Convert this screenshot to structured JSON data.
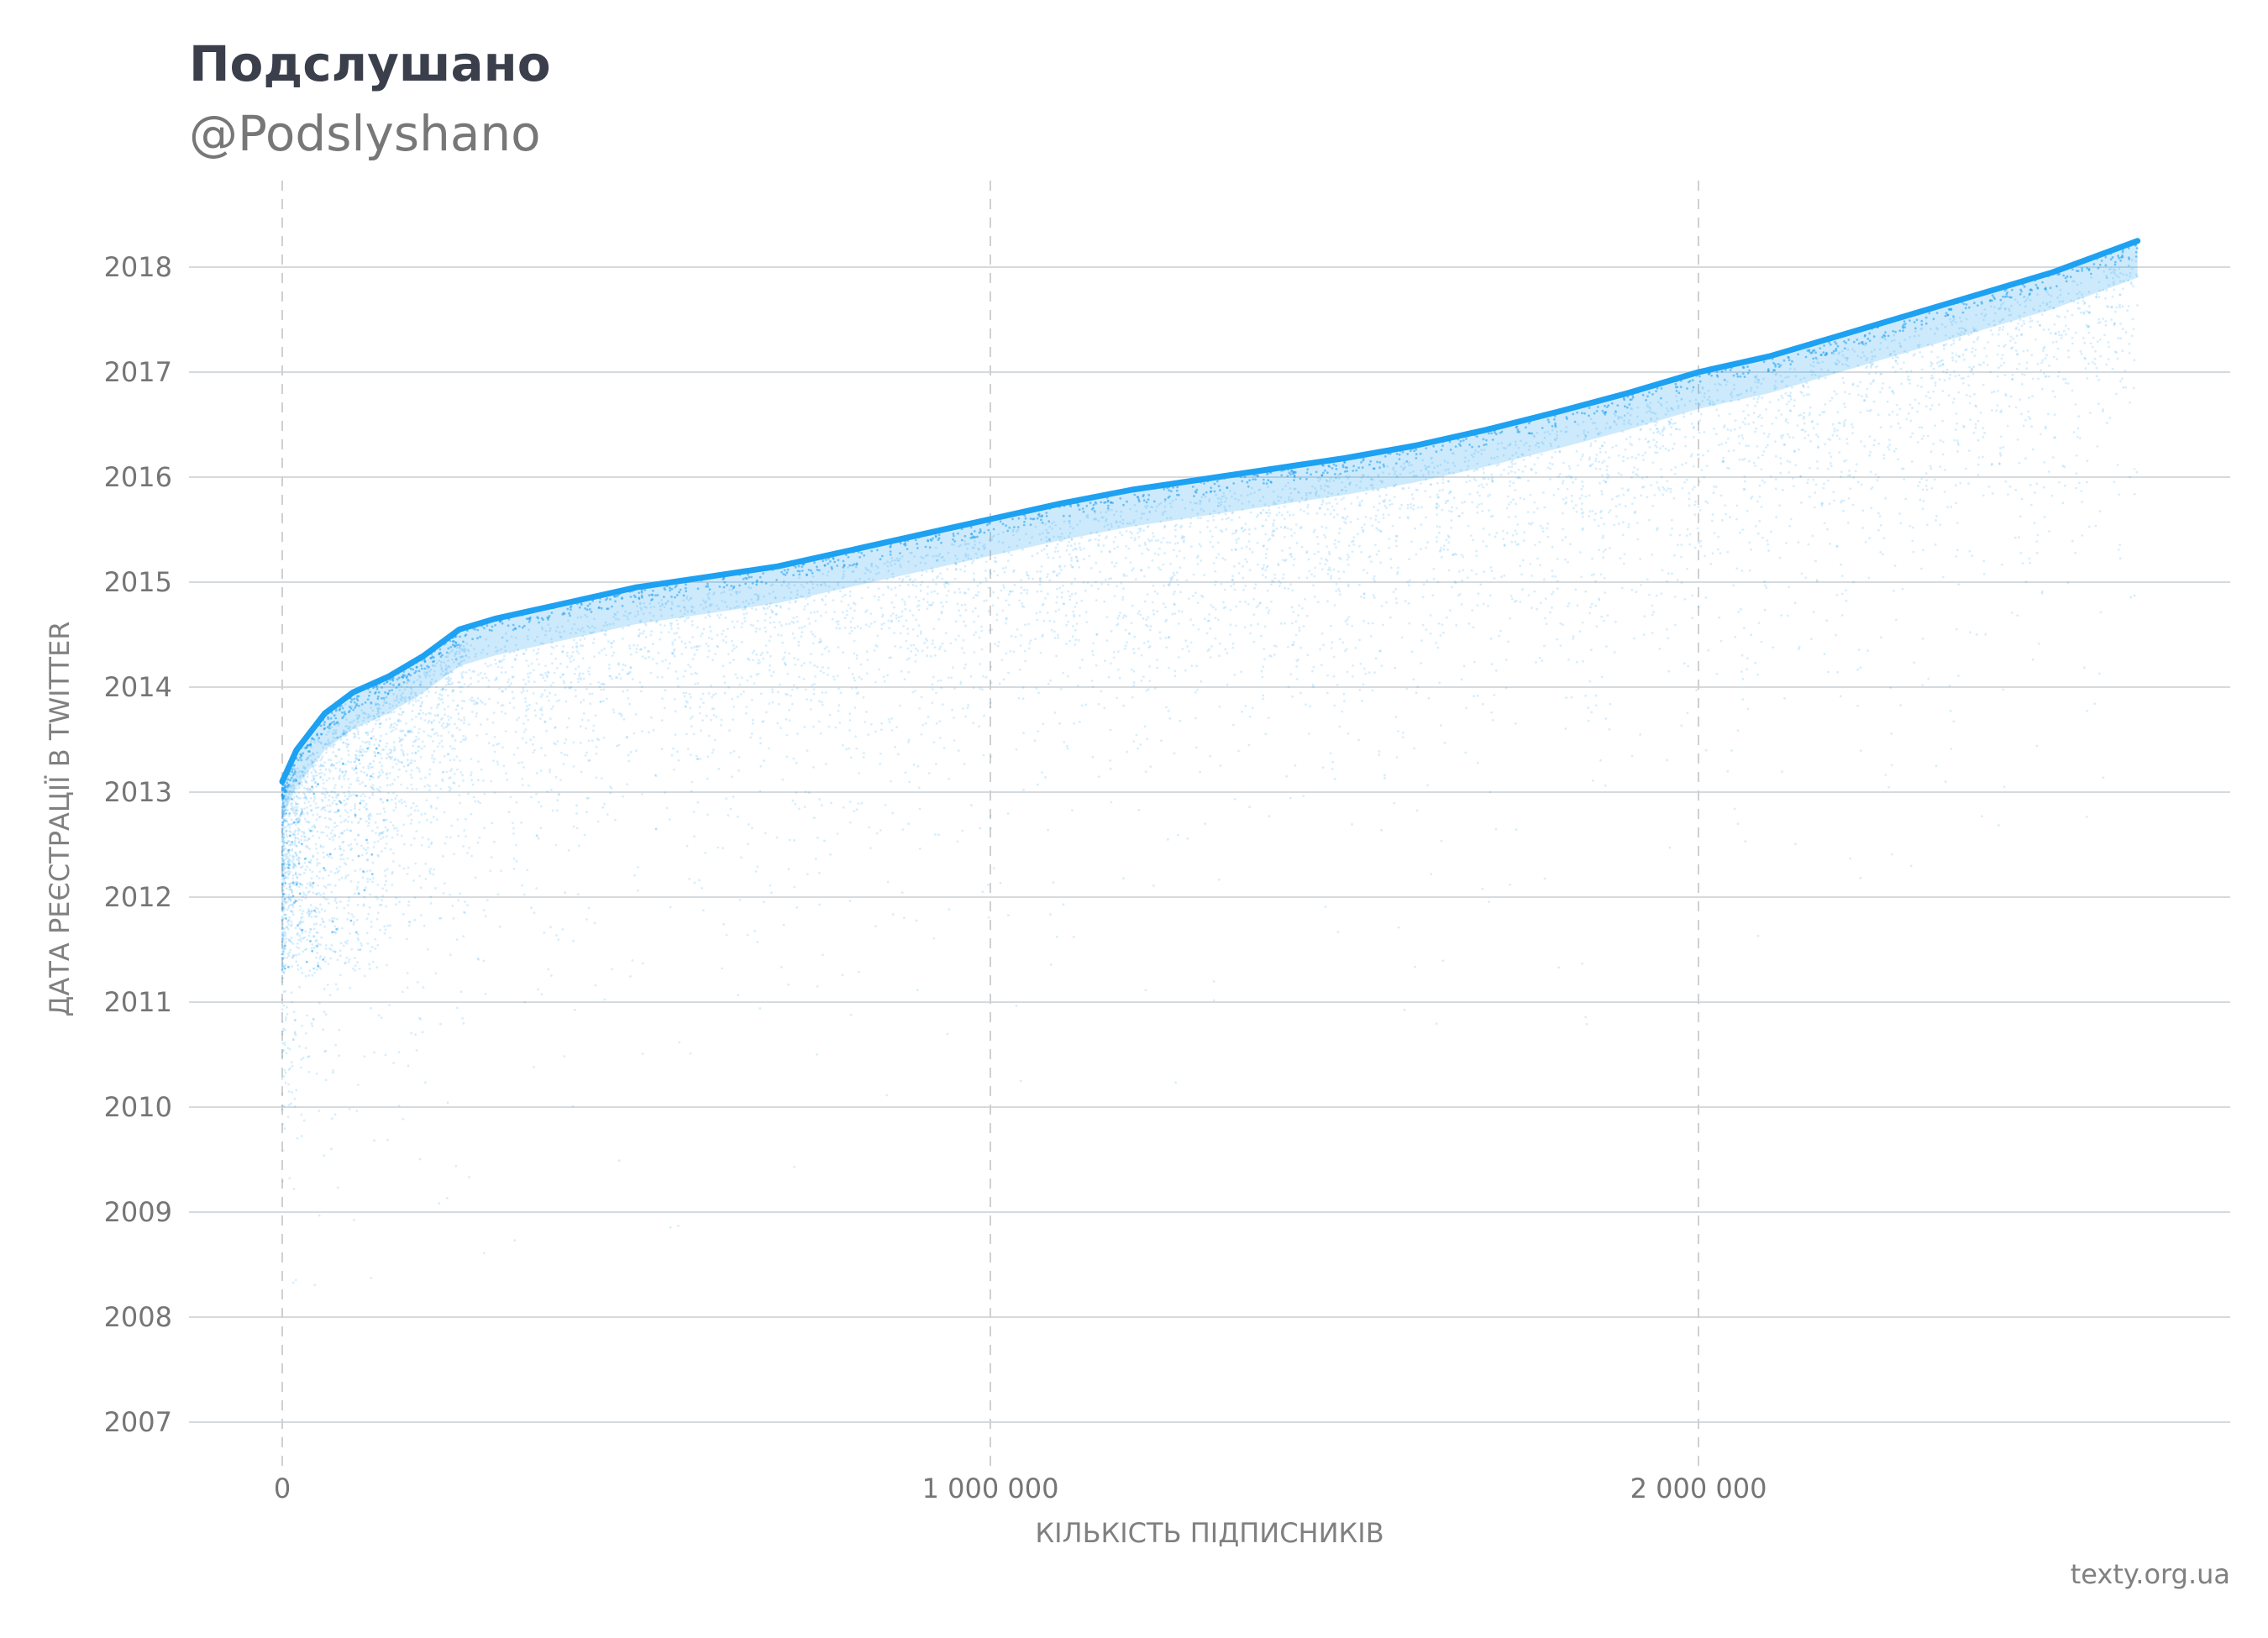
{
  "header": {
    "title": "Подслушано",
    "subtitle": "@Podslyshano"
  },
  "footer": {
    "source": "texty.org.ua"
  },
  "chart_data": {
    "type": "scatter",
    "title": "Подслушано",
    "subtitle": "@Podslyshano",
    "xlabel": "КІЛЬКІСТЬ ПІДПИСНИКІВ",
    "ylabel": "ДАТА РЕЄСТРАЦІЇ В TWITTER",
    "xlim": [
      -130000,
      2750000
    ],
    "ylim": [
      2006.6,
      2018.8
    ],
    "x_ticks": [
      0,
      1000000,
      2000000
    ],
    "x_tick_labels": [
      "0",
      "1 000 000",
      "2 000 000"
    ],
    "y_ticks": [
      2007,
      2008,
      2009,
      2010,
      2011,
      2012,
      2013,
      2014,
      2015,
      2016,
      2017,
      2018
    ],
    "y_tick_labels": [
      "2007",
      "2008",
      "2009",
      "2010",
      "2011",
      "2012",
      "2013",
      "2014",
      "2015",
      "2016",
      "2017",
      "2018"
    ],
    "grid": true,
    "legend": "none",
    "color": "#1da1f2",
    "upper_envelope": {
      "x": [
        0,
        20000,
        60000,
        100000,
        150000,
        200000,
        250000,
        300000,
        400000,
        500000,
        600000,
        700000,
        800000,
        900000,
        1000000,
        1100000,
        1200000,
        1300000,
        1400000,
        1500000,
        1600000,
        1700000,
        1800000,
        1900000,
        2000000,
        2100000,
        2200000,
        2300000,
        2400000,
        2500000,
        2600000,
        2620000
      ],
      "y": [
        2013.1,
        2013.4,
        2013.75,
        2013.95,
        2014.1,
        2014.3,
        2014.55,
        2014.65,
        2014.8,
        2014.95,
        2015.05,
        2015.15,
        2015.3,
        2015.45,
        2015.6,
        2015.75,
        2015.88,
        2015.98,
        2016.08,
        2016.18,
        2016.3,
        2016.45,
        2016.62,
        2016.8,
        2017.0,
        2017.15,
        2017.35,
        2017.55,
        2017.75,
        2017.95,
        2018.2,
        2018.25
      ]
    },
    "points_note_density": "dense band just below upper envelope, thinning toward earlier registration years"
  }
}
